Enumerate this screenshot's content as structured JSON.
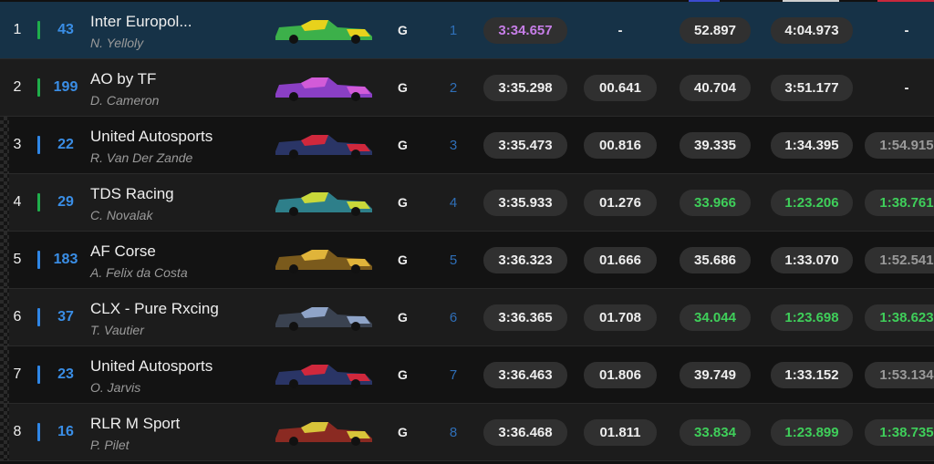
{
  "rows": [
    {
      "position": "1",
      "class_color": "#1fae4b",
      "number": "43",
      "team": "Inter Europol...",
      "driver": "N. Yelloly",
      "tyre": "G",
      "class_position": "1",
      "lap_time": "3:34.657",
      "gap": "-",
      "s1": "52.897",
      "s2": "4:04.973",
      "s3": "-",
      "time_color": "#c77ee8",
      "s1_color": "#eeeeee",
      "s2_color": "#eeeeee",
      "s3_color": "#eeeeee",
      "car_color": "#3cb04a",
      "car_accent": "#e8d21c"
    },
    {
      "position": "2",
      "class_color": "#1fae4b",
      "number": "199",
      "team": "AO by TF",
      "driver": "D. Cameron",
      "tyre": "G",
      "class_position": "2",
      "lap_time": "3:35.298",
      "gap": "00.641",
      "s1": "40.704",
      "s2": "3:51.177",
      "s3": "-",
      "time_color": "#eeeeee",
      "s1_color": "#eeeeee",
      "s2_color": "#eeeeee",
      "s3_color": "#eeeeee",
      "car_color": "#8a3fc4",
      "car_accent": "#d25bd8"
    },
    {
      "position": "3",
      "class_color": "#2f86e6",
      "number": "22",
      "team": "United Autosports",
      "driver": "R. Van Der Zande",
      "tyre": "G",
      "class_position": "3",
      "lap_time": "3:35.473",
      "gap": "00.816",
      "s1": "39.335",
      "s2": "1:34.395",
      "s3": "1:54.915",
      "time_color": "#eeeeee",
      "s1_color": "#eeeeee",
      "s2_color": "#eeeeee",
      "s3_color": "#9a9a9a",
      "car_color": "#2a3566",
      "car_accent": "#d0283c"
    },
    {
      "position": "4",
      "class_color": "#1fae4b",
      "number": "29",
      "team": "TDS Racing",
      "driver": "C. Novalak",
      "tyre": "G",
      "class_position": "4",
      "lap_time": "3:35.933",
      "gap": "01.276",
      "s1": "33.966",
      "s2": "1:23.206",
      "s3": "1:38.761",
      "time_color": "#eeeeee",
      "s1_color": "#3fcf5a",
      "s2_color": "#3fcf5a",
      "s3_color": "#3fcf5a",
      "car_color": "#2e7f8a",
      "car_accent": "#c9d83a"
    },
    {
      "position": "5",
      "class_color": "#2f86e6",
      "number": "183",
      "team": "AF Corse",
      "driver": "A. Felix da Costa",
      "tyre": "G",
      "class_position": "5",
      "lap_time": "3:36.323",
      "gap": "01.666",
      "s1": "35.686",
      "s2": "1:33.070",
      "s3": "1:52.541",
      "time_color": "#eeeeee",
      "s1_color": "#eeeeee",
      "s2_color": "#eeeeee",
      "s3_color": "#9a9a9a",
      "car_color": "#7a5a1c",
      "car_accent": "#e0b43a"
    },
    {
      "position": "6",
      "class_color": "#2f86e6",
      "number": "37",
      "team": "CLX - Pure Rxcing",
      "driver": "T. Vautier",
      "tyre": "G",
      "class_position": "6",
      "lap_time": "3:36.365",
      "gap": "01.708",
      "s1": "34.044",
      "s2": "1:23.698",
      "s3": "1:38.623",
      "time_color": "#eeeeee",
      "s1_color": "#3fcf5a",
      "s2_color": "#3fcf5a",
      "s3_color": "#3fcf5a",
      "car_color": "#3a4250",
      "car_accent": "#8fa4c8"
    },
    {
      "position": "7",
      "class_color": "#2f86e6",
      "number": "23",
      "team": "United Autosports",
      "driver": "O. Jarvis",
      "tyre": "G",
      "class_position": "7",
      "lap_time": "3:36.463",
      "gap": "01.806",
      "s1": "39.749",
      "s2": "1:33.152",
      "s3": "1:53.134",
      "time_color": "#eeeeee",
      "s1_color": "#eeeeee",
      "s2_color": "#eeeeee",
      "s3_color": "#9a9a9a",
      "car_color": "#2a3566",
      "car_accent": "#d0283c"
    },
    {
      "position": "8",
      "class_color": "#2f86e6",
      "number": "16",
      "team": "RLR M Sport",
      "driver": "P. Pilet",
      "tyre": "G",
      "class_position": "8",
      "lap_time": "3:36.468",
      "gap": "01.811",
      "s1": "33.834",
      "s2": "1:23.899",
      "s3": "1:38.735",
      "time_color": "#eeeeee",
      "s1_color": "#3fcf5a",
      "s2_color": "#3fcf5a",
      "s3_color": "#3fcf5a",
      "car_color": "#8a2a22",
      "car_accent": "#d8c43a"
    }
  ]
}
